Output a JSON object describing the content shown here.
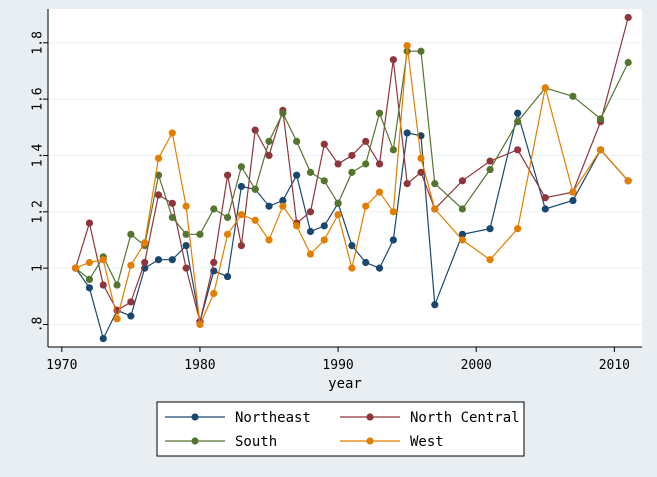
{
  "chart_data": {
    "type": "line",
    "xlabel": "year",
    "ylabel": "",
    "xlim": [
      1969,
      2012
    ],
    "ylim": [
      0.72,
      1.92
    ],
    "xticks": [
      1970,
      1980,
      1990,
      2000,
      2010
    ],
    "yticks": [
      0.8,
      1.0,
      1.2,
      1.4,
      1.6,
      1.8
    ],
    "ytick_labels": [
      ".8",
      "1",
      "1.2",
      "1.4",
      "1.6",
      "1.8"
    ],
    "grid": "horizontal",
    "legend_position": "bottom",
    "series": [
      {
        "name": "Northeast",
        "color": "#1a476f",
        "points": [
          [
            1971,
            1.0
          ],
          [
            1972,
            0.93
          ],
          [
            1973,
            0.75
          ],
          [
            1974,
            0.85
          ],
          [
            1975,
            0.83
          ],
          [
            1976,
            1.0
          ],
          [
            1977,
            1.03
          ],
          [
            1978,
            1.03
          ],
          [
            1979,
            1.08
          ],
          [
            1980,
            0.81
          ],
          [
            1981,
            0.99
          ],
          [
            1982,
            0.97
          ],
          [
            1983,
            1.29
          ],
          [
            1984,
            1.28
          ],
          [
            1985,
            1.22
          ],
          [
            1986,
            1.24
          ],
          [
            1987,
            1.33
          ],
          [
            1988,
            1.13
          ],
          [
            1989,
            1.15
          ],
          [
            1990,
            1.23
          ],
          [
            1991,
            1.08
          ],
          [
            1992,
            1.02
          ],
          [
            1993,
            1.0
          ],
          [
            1994,
            1.1
          ],
          [
            1995,
            1.48
          ],
          [
            1996,
            1.47
          ],
          [
            1997,
            0.87
          ],
          [
            1999,
            1.12
          ],
          [
            2001,
            1.14
          ],
          [
            2003,
            1.55
          ],
          [
            2005,
            1.21
          ],
          [
            2007,
            1.24
          ],
          [
            2009,
            1.42
          ],
          [
            2011,
            1.31
          ]
        ]
      },
      {
        "name": "North Central",
        "color": "#90353b",
        "points": [
          [
            1971,
            1.0
          ],
          [
            1972,
            1.16
          ],
          [
            1973,
            0.94
          ],
          [
            1974,
            0.85
          ],
          [
            1975,
            0.88
          ],
          [
            1976,
            1.02
          ],
          [
            1977,
            1.26
          ],
          [
            1978,
            1.23
          ],
          [
            1979,
            1.0
          ],
          [
            1980,
            0.81
          ],
          [
            1981,
            1.02
          ],
          [
            1982,
            1.33
          ],
          [
            1983,
            1.08
          ],
          [
            1984,
            1.49
          ],
          [
            1985,
            1.4
          ],
          [
            1986,
            1.56
          ],
          [
            1987,
            1.16
          ],
          [
            1988,
            1.2
          ],
          [
            1989,
            1.44
          ],
          [
            1990,
            1.37
          ],
          [
            1991,
            1.4
          ],
          [
            1992,
            1.45
          ],
          [
            1993,
            1.37
          ],
          [
            1994,
            1.74
          ],
          [
            1995,
            1.3
          ],
          [
            1996,
            1.34
          ],
          [
            1997,
            1.21
          ],
          [
            1999,
            1.31
          ],
          [
            2001,
            1.38
          ],
          [
            2003,
            1.42
          ],
          [
            2005,
            1.25
          ],
          [
            2007,
            1.27
          ],
          [
            2009,
            1.52
          ],
          [
            2011,
            1.89
          ]
        ]
      },
      {
        "name": "South",
        "color": "#55752f",
        "points": [
          [
            1971,
            1.0
          ],
          [
            1972,
            0.96
          ],
          [
            1973,
            1.04
          ],
          [
            1974,
            0.94
          ],
          [
            1975,
            1.12
          ],
          [
            1976,
            1.08
          ],
          [
            1977,
            1.33
          ],
          [
            1978,
            1.18
          ],
          [
            1979,
            1.12
          ],
          [
            1980,
            1.12
          ],
          [
            1981,
            1.21
          ],
          [
            1982,
            1.18
          ],
          [
            1983,
            1.36
          ],
          [
            1984,
            1.28
          ],
          [
            1985,
            1.45
          ],
          [
            1986,
            1.55
          ],
          [
            1987,
            1.45
          ],
          [
            1988,
            1.34
          ],
          [
            1989,
            1.31
          ],
          [
            1990,
            1.23
          ],
          [
            1991,
            1.34
          ],
          [
            1992,
            1.37
          ],
          [
            1993,
            1.55
          ],
          [
            1994,
            1.42
          ],
          [
            1995,
            1.77
          ],
          [
            1996,
            1.77
          ],
          [
            1997,
            1.3
          ],
          [
            1999,
            1.21
          ],
          [
            2001,
            1.35
          ],
          [
            2003,
            1.52
          ],
          [
            2005,
            1.64
          ],
          [
            2007,
            1.61
          ],
          [
            2009,
            1.53
          ],
          [
            2011,
            1.73
          ]
        ]
      },
      {
        "name": "West",
        "color": "#e37e00",
        "points": [
          [
            1971,
            1.0
          ],
          [
            1972,
            1.02
          ],
          [
            1973,
            1.03
          ],
          [
            1974,
            0.82
          ],
          [
            1975,
            1.01
          ],
          [
            1976,
            1.09
          ],
          [
            1977,
            1.39
          ],
          [
            1978,
            1.48
          ],
          [
            1979,
            1.22
          ],
          [
            1980,
            0.8
          ],
          [
            1981,
            0.91
          ],
          [
            1982,
            1.12
          ],
          [
            1983,
            1.19
          ],
          [
            1984,
            1.17
          ],
          [
            1985,
            1.1
          ],
          [
            1986,
            1.22
          ],
          [
            1987,
            1.15
          ],
          [
            1988,
            1.05
          ],
          [
            1989,
            1.1
          ],
          [
            1990,
            1.19
          ],
          [
            1991,
            1.0
          ],
          [
            1992,
            1.22
          ],
          [
            1993,
            1.27
          ],
          [
            1994,
            1.2
          ],
          [
            1995,
            1.79
          ],
          [
            1996,
            1.39
          ],
          [
            1997,
            1.21
          ],
          [
            1999,
            1.1
          ],
          [
            2001,
            1.03
          ],
          [
            2003,
            1.14
          ],
          [
            2005,
            1.64
          ],
          [
            2007,
            1.27
          ],
          [
            2009,
            1.42
          ],
          [
            2011,
            1.31
          ]
        ]
      }
    ]
  }
}
